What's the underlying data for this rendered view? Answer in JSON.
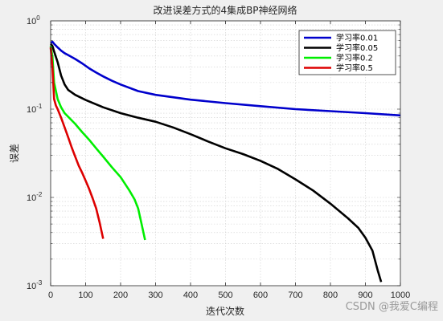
{
  "chart_data": {
    "type": "line",
    "title": "改进误差方式的4集成BP神经网络",
    "xlabel": "迭代次数",
    "ylabel": "误差",
    "xlim": [
      0,
      1000
    ],
    "ylim": [
      0.001,
      1
    ],
    "yscale": "log",
    "grid": true,
    "legend_position": "top-right",
    "xticks": [
      0,
      100,
      200,
      300,
      400,
      500,
      600,
      700,
      800,
      900,
      1000
    ],
    "yticks": [
      {
        "base": "10",
        "exp": "-3",
        "value": 0.001
      },
      {
        "base": "10",
        "exp": "-2",
        "value": 0.01
      },
      {
        "base": "10",
        "exp": "-1",
        "value": 0.1
      },
      {
        "base": "10",
        "exp": "0",
        "value": 1
      }
    ],
    "series": [
      {
        "name": "学习率0.01",
        "color": "#0000cc",
        "x": [
          0,
          5,
          10,
          20,
          30,
          40,
          50,
          70,
          90,
          110,
          130,
          150,
          175,
          200,
          250,
          300,
          400,
          500,
          600,
          700,
          800,
          900,
          1000
        ],
        "y": [
          0.56,
          0.58,
          0.55,
          0.5,
          0.46,
          0.43,
          0.41,
          0.37,
          0.33,
          0.29,
          0.26,
          0.235,
          0.21,
          0.19,
          0.16,
          0.145,
          0.128,
          0.117,
          0.108,
          0.1,
          0.095,
          0.09,
          0.085
        ]
      },
      {
        "name": "学习率0.05",
        "color": "#000000",
        "x": [
          0,
          5,
          10,
          20,
          30,
          40,
          50,
          70,
          100,
          150,
          200,
          250,
          300,
          350,
          400,
          450,
          500,
          550,
          600,
          650,
          700,
          750,
          800,
          850,
          880,
          900,
          920,
          935,
          945
        ],
        "y": [
          0.55,
          0.52,
          0.45,
          0.34,
          0.24,
          0.19,
          0.165,
          0.145,
          0.127,
          0.105,
          0.09,
          0.08,
          0.072,
          0.062,
          0.052,
          0.043,
          0.036,
          0.031,
          0.026,
          0.021,
          0.016,
          0.012,
          0.0085,
          0.0058,
          0.0045,
          0.0035,
          0.0025,
          0.0015,
          0.0011
        ]
      },
      {
        "name": "学习率0.2",
        "color": "#00ee00",
        "x": [
          0,
          5,
          10,
          20,
          30,
          40,
          50,
          70,
          90,
          110,
          130,
          150,
          175,
          200,
          225,
          240,
          250,
          260,
          270
        ],
        "y": [
          0.52,
          0.4,
          0.2,
          0.13,
          0.105,
          0.09,
          0.082,
          0.068,
          0.055,
          0.045,
          0.036,
          0.029,
          0.022,
          0.017,
          0.012,
          0.0095,
          0.0075,
          0.005,
          0.0033
        ]
      },
      {
        "name": "学习率0.5",
        "color": "#dd0000",
        "x": [
          0,
          5,
          10,
          15,
          20,
          30,
          40,
          50,
          60,
          70,
          80,
          90,
          100,
          110,
          120,
          130,
          140,
          145,
          150
        ],
        "y": [
          0.5,
          0.3,
          0.13,
          0.11,
          0.1,
          0.08,
          0.062,
          0.048,
          0.037,
          0.029,
          0.023,
          0.019,
          0.0155,
          0.0125,
          0.0098,
          0.0075,
          0.0052,
          0.0042,
          0.0034
        ]
      }
    ]
  },
  "watermark": "CSDN @我爱C编程"
}
